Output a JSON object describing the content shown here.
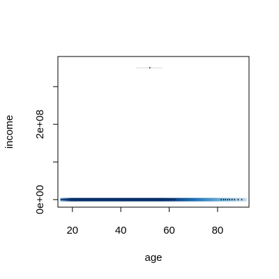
{
  "chart_data": {
    "type": "scatter",
    "title": "",
    "xlabel": "age",
    "ylabel": "income",
    "xlim": [
      14,
      93
    ],
    "ylim": [
      -20000000,
      380000000
    ],
    "x_ticks": [
      {
        "value": 20,
        "label": "20"
      },
      {
        "value": 40,
        "label": "40"
      },
      {
        "value": 60,
        "label": "60"
      },
      {
        "value": 80,
        "label": "80"
      }
    ],
    "y_ticks": [
      {
        "value": 0,
        "label": "0e+00"
      },
      {
        "value": 100000000,
        "label": ""
      },
      {
        "value": 200000000,
        "label": "2e+08"
      },
      {
        "value": 300000000,
        "label": ""
      }
    ],
    "grid": false,
    "legend": "none",
    "style": "smoothScatter",
    "colors": {
      "band_dark": "#08306b",
      "band_mid": "#2171b5",
      "band_light": "#9ecae1",
      "point": "#000000"
    },
    "density_band": {
      "x_start": 15,
      "x_end": 92,
      "y": 0
    },
    "outliers": [
      {
        "x": 52,
        "y": 350000000
      },
      {
        "x": 81.5,
        "y": 0
      },
      {
        "x": 82.5,
        "y": 0
      },
      {
        "x": 83.3,
        "y": 0
      },
      {
        "x": 84.2,
        "y": 0
      },
      {
        "x": 85.0,
        "y": 0
      },
      {
        "x": 86.0,
        "y": 0
      },
      {
        "x": 87.0,
        "y": 0
      },
      {
        "x": 88.5,
        "y": 0
      },
      {
        "x": 90.0,
        "y": 0
      }
    ]
  }
}
